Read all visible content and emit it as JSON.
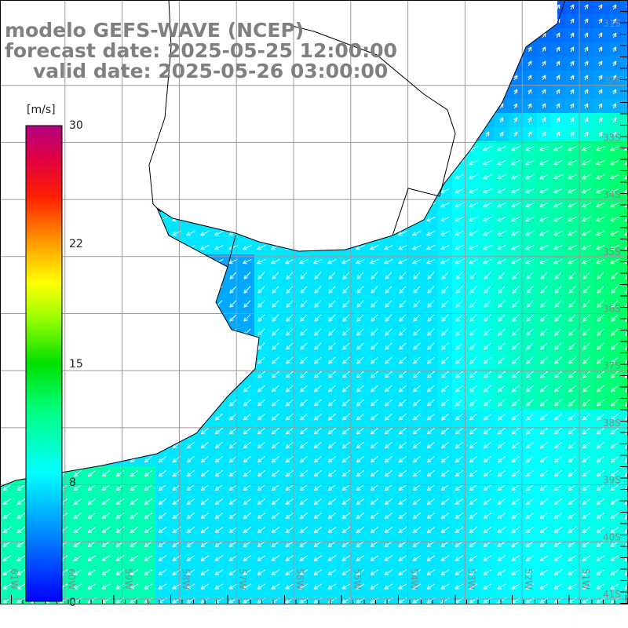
{
  "title": {
    "line1": "modelo GEFS-WAVE (NCEP)",
    "line2": "forecast date: 2025-05-25 12:00:00",
    "line3": "valid date: 2025-05-26 03:00:00"
  },
  "colorbar": {
    "unit": "[m/s]",
    "ticks": [
      "30",
      "22",
      "15",
      "8",
      "0"
    ],
    "colors": [
      "#0000ff",
      "#00a0ff",
      "#00ffff",
      "#00ff80",
      "#00e000",
      "#80ff00",
      "#ffff00",
      "#ffa000",
      "#ff4000",
      "#ff0000",
      "#c00060",
      "#b00080"
    ]
  },
  "axes": {
    "lon_labels": [
      "61W",
      "60W",
      "59W",
      "58W",
      "57W",
      "56W",
      "55W",
      "54W",
      "53W",
      "52W",
      "51W"
    ],
    "lat_labels": [
      "31S",
      "32S",
      "33S",
      "34S",
      "35S",
      "36S",
      "37S",
      "38S",
      "39S",
      "40S",
      "41S"
    ]
  }
}
